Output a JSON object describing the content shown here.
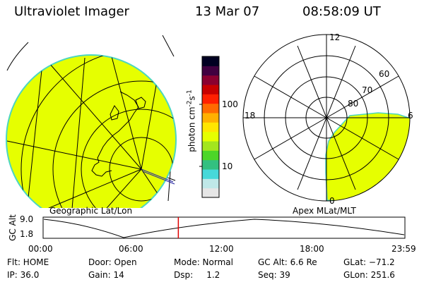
{
  "header": {
    "instrument": "Ultraviolet Imager",
    "date": "13 Mar 07",
    "time": "08:58:09 UT"
  },
  "colorbar": {
    "unit_label": "photon cm",
    "unit_exp1": "-2",
    "unit_mid": "s",
    "unit_exp2": "-1",
    "tick_100": "100",
    "tick_10": "10",
    "colors": [
      "#e6e6e6",
      "#bfe8e8",
      "#47d9d9",
      "#33c080",
      "#4cd628",
      "#a3e61e",
      "#e6ff00",
      "#ffe600",
      "#ffb000",
      "#ff6a00",
      "#ff2000",
      "#c80000",
      "#8a0030",
      "#400040",
      "#000022"
    ]
  },
  "maps": {
    "left_label": "Geographic Lat/Lon",
    "right_label": "Apex MLat/MLT",
    "fill_color": "#e6ff00",
    "polar": {
      "mlt_12": "12",
      "mlt_18": "18",
      "mlt_6": "6",
      "mlt_0": "0",
      "lat_60": "60",
      "lat_70": "70",
      "lat_80": "80"
    }
  },
  "altitude_plot": {
    "axis_label": "GC Alt",
    "y_top": "9.0",
    "y_bottom": "1.8",
    "x_ticks": [
      "00:00",
      "06:00",
      "12:00",
      "18:00",
      "23:59"
    ],
    "current_time_marker_hours": 8.97
  },
  "info": {
    "flt": "Flt: HOME",
    "ip": "IP: 36.0",
    "door": "Door: Open",
    "gain": "Gain: 14",
    "mode": "Mode: Normal",
    "dsp": "Dsp:     1.2",
    "gc_alt": "GC Alt: 6.6 Re",
    "seq": "Seq: 39",
    "glat": "GLat: −71.2",
    "glon": "GLon: 251.6"
  }
}
